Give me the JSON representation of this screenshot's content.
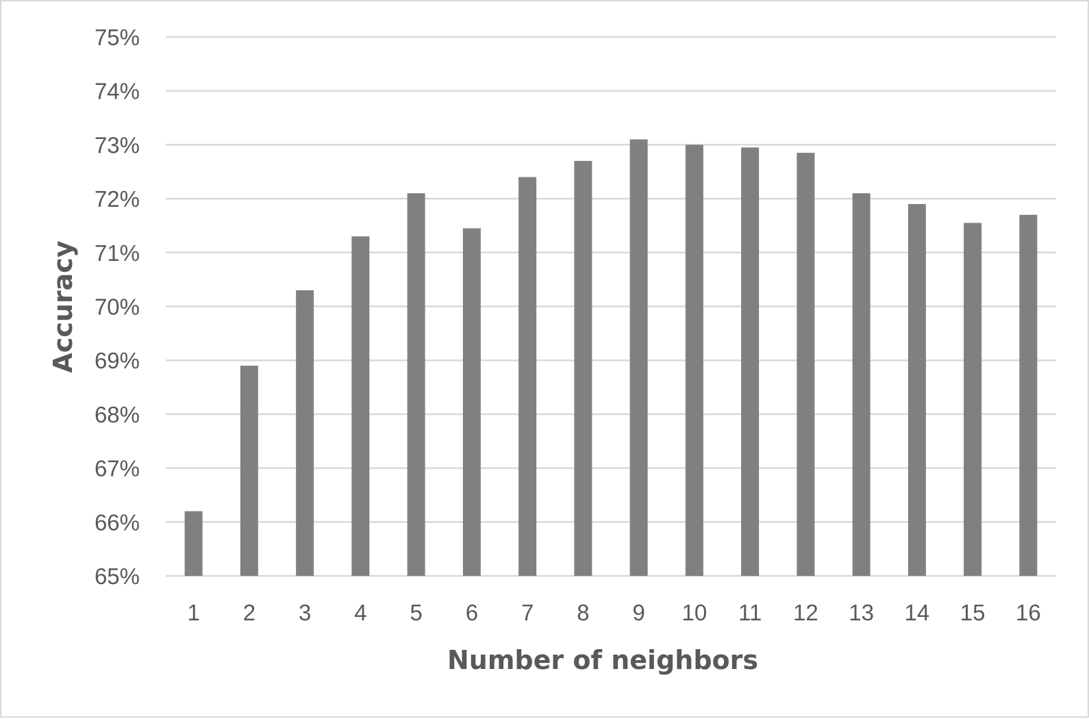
{
  "chart_data": {
    "type": "bar",
    "title": "",
    "xlabel": "Number of neighbors",
    "ylabel": "Accuracy",
    "categories": [
      "1",
      "2",
      "3",
      "4",
      "5",
      "6",
      "7",
      "8",
      "9",
      "10",
      "11",
      "12",
      "13",
      "14",
      "15",
      "16"
    ],
    "series": [
      {
        "values": [
          66.2,
          68.9,
          70.3,
          71.3,
          72.1,
          71.45,
          72.4,
          72.7,
          73.1,
          73.0,
          72.95,
          72.85,
          72.1,
          71.9,
          71.55,
          71.7
        ]
      }
    ],
    "ylim": [
      65,
      75
    ],
    "yticks": [
      "65%",
      "66%",
      "67%",
      "68%",
      "69%",
      "70%",
      "71%",
      "72%",
      "73%",
      "74%",
      "75%"
    ],
    "grid": true,
    "legend": "none",
    "colors": {
      "bar": "#808080",
      "grid": "#d9d9d9",
      "text": "#595959",
      "frame": "#d9d9d9"
    }
  }
}
